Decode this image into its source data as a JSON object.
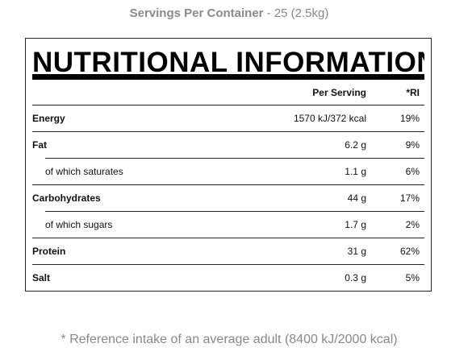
{
  "servings": {
    "label": "Servings Per Container",
    "value": " - 25 (2.5kg)"
  },
  "panel": {
    "title": "NUTRITIONAL INFORMATION",
    "columns": {
      "per_serving": "Per Serving",
      "ri": "*RI"
    },
    "rows": [
      {
        "name": "Energy",
        "per_serving": "1570 kJ/372 kcal",
        "ri": "19%"
      },
      {
        "name": "Fat",
        "per_serving": "6.2 g",
        "ri": "9%"
      },
      {
        "name": "of which saturates",
        "per_serving": "1.1 g",
        "ri": "6%"
      },
      {
        "name": "Carbohydrates",
        "per_serving": "44 g",
        "ri": "17%"
      },
      {
        "name": "of which sugars",
        "per_serving": "1.7 g",
        "ri": "2%"
      },
      {
        "name": "Protein",
        "per_serving": "31 g",
        "ri": "62%"
      },
      {
        "name": "Salt",
        "per_serving": "0.3 g",
        "ri": "5%"
      }
    ]
  },
  "footnote": "* Reference intake of an average adult (8400 kJ/2000 kcal)"
}
